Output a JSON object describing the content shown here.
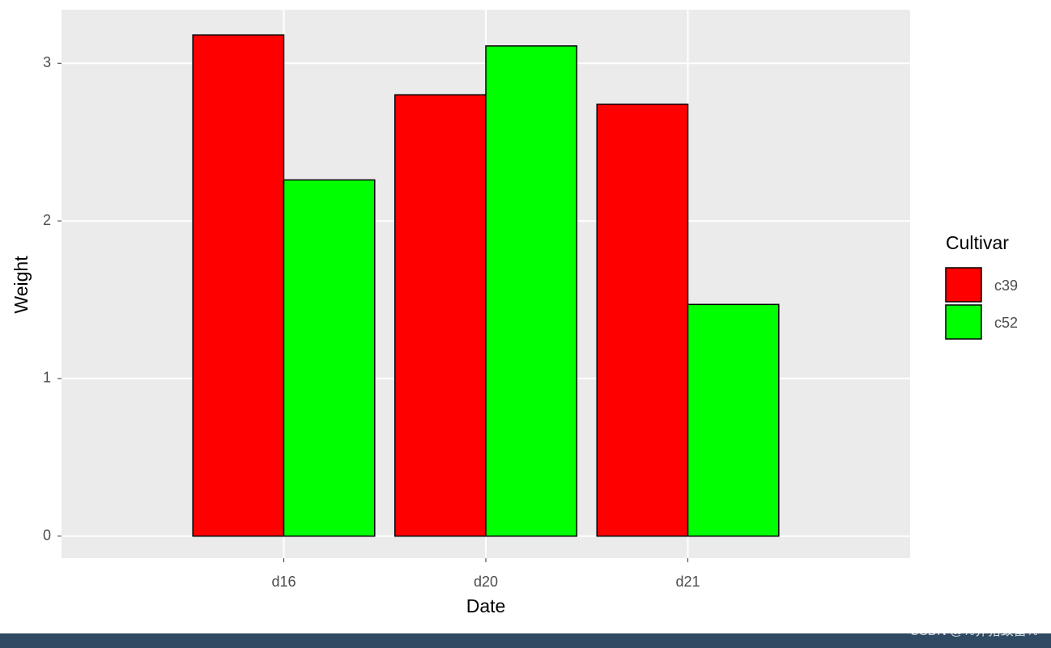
{
  "chart_data": {
    "type": "bar",
    "x_label": "Date",
    "y_label": "Weight",
    "categories": [
      "d16",
      "d20",
      "d21"
    ],
    "series": [
      {
        "name": "c39",
        "color": "#ff0000",
        "values": [
          3.18,
          2.8,
          2.74
        ]
      },
      {
        "name": "c52",
        "color": "#00ff00",
        "values": [
          2.26,
          3.11,
          1.47
        ]
      }
    ],
    "legend_title": "Cultivar",
    "legend": "right",
    "ylim": [
      -0.14,
      3.34
    ],
    "yticks": [
      0,
      1,
      2,
      3
    ],
    "grid": true
  },
  "watermark": "CSDN @%养猪致富%"
}
